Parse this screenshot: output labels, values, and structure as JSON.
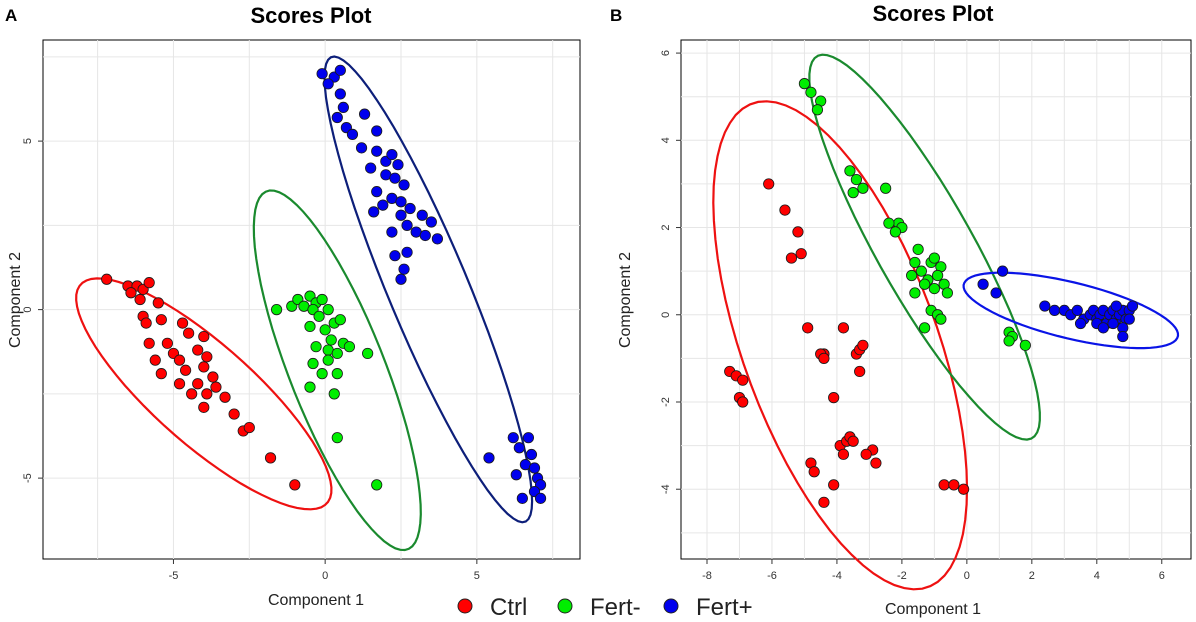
{
  "legend": [
    {
      "label": "Ctrl",
      "color": "#ff0000"
    },
    {
      "label": "Fert-",
      "color": "#00ee00"
    },
    {
      "label": "Fert+",
      "color": "#0000ee"
    }
  ],
  "chart_data": [
    {
      "panel": "A",
      "type": "scatter",
      "title": "Scores Plot",
      "xlabel": "Component 1",
      "ylabel": "Component 2",
      "xlim": [
        -9.3,
        8.4
      ],
      "ylim": [
        -7.4,
        8.0
      ],
      "xticks": [
        -5,
        0,
        5
      ],
      "yticks": [
        -5,
        0,
        5
      ],
      "xtick_labels": [
        "-5",
        "0",
        "5"
      ],
      "ytick_labels": [
        "-5",
        "0",
        "5"
      ],
      "grid": true,
      "series": [
        {
          "name": "Ctrl",
          "color": "#ff0000",
          "ellipse_color": "#ee1111",
          "ellipse": {
            "center": [
              -4.0,
              -2.5
            ],
            "semi_major": 5.2,
            "semi_minor": 1.55,
            "angle_deg": -38
          },
          "points": [
            [
              -7.2,
              0.9
            ],
            [
              -6.5,
              0.7
            ],
            [
              -6.2,
              0.7
            ],
            [
              -6.0,
              0.6
            ],
            [
              -5.8,
              0.8
            ],
            [
              -6.4,
              0.5
            ],
            [
              -6.1,
              0.3
            ],
            [
              -5.5,
              0.2
            ],
            [
              -6.0,
              -0.2
            ],
            [
              -5.9,
              -0.4
            ],
            [
              -5.4,
              -0.3
            ],
            [
              -4.7,
              -0.4
            ],
            [
              -5.8,
              -1.0
            ],
            [
              -5.2,
              -1.0
            ],
            [
              -4.5,
              -0.7
            ],
            [
              -4.0,
              -0.8
            ],
            [
              -5.0,
              -1.3
            ],
            [
              -4.2,
              -1.2
            ],
            [
              -5.6,
              -1.5
            ],
            [
              -4.8,
              -1.5
            ],
            [
              -3.9,
              -1.4
            ],
            [
              -5.4,
              -1.9
            ],
            [
              -4.6,
              -1.8
            ],
            [
              -4.0,
              -1.7
            ],
            [
              -3.7,
              -2.0
            ],
            [
              -4.8,
              -2.2
            ],
            [
              -4.2,
              -2.2
            ],
            [
              -3.6,
              -2.3
            ],
            [
              -4.4,
              -2.5
            ],
            [
              -3.9,
              -2.5
            ],
            [
              -3.3,
              -2.6
            ],
            [
              -4.0,
              -2.9
            ],
            [
              -3.0,
              -3.1
            ],
            [
              -2.7,
              -3.6
            ],
            [
              -2.5,
              -3.5
            ],
            [
              -1.8,
              -4.4
            ],
            [
              -1.0,
              -5.2
            ]
          ]
        },
        {
          "name": "Fert-",
          "color": "#00ee00",
          "ellipse_color": "#1a8a2e",
          "ellipse": {
            "center": [
              0.4,
              -1.8
            ],
            "semi_major": 5.8,
            "semi_minor": 1.55,
            "angle_deg": -66
          },
          "points": [
            [
              -1.6,
              0.0
            ],
            [
              -1.1,
              0.1
            ],
            [
              -0.9,
              0.3
            ],
            [
              -0.5,
              0.4
            ],
            [
              -0.3,
              0.2
            ],
            [
              -0.7,
              0.1
            ],
            [
              -0.4,
              0.0
            ],
            [
              -0.1,
              0.3
            ],
            [
              0.1,
              0.0
            ],
            [
              -0.2,
              -0.2
            ],
            [
              0.3,
              -0.4
            ],
            [
              0.5,
              -0.3
            ],
            [
              -0.5,
              -0.5
            ],
            [
              0.0,
              -0.6
            ],
            [
              0.2,
              -0.9
            ],
            [
              0.6,
              -1.0
            ],
            [
              -0.3,
              -1.1
            ],
            [
              0.1,
              -1.2
            ],
            [
              0.4,
              -1.3
            ],
            [
              0.8,
              -1.1
            ],
            [
              -0.4,
              -1.6
            ],
            [
              0.1,
              -1.5
            ],
            [
              -0.1,
              -1.9
            ],
            [
              0.4,
              -1.9
            ],
            [
              1.4,
              -1.3
            ],
            [
              -0.5,
              -2.3
            ],
            [
              0.3,
              -2.5
            ],
            [
              0.4,
              -3.8
            ],
            [
              1.7,
              -5.2
            ]
          ]
        },
        {
          "name": "Fert+",
          "color": "#0000ee",
          "ellipse_color": "#0d1f7a",
          "ellipse": {
            "center": [
              3.4,
              0.6
            ],
            "semi_major": 7.6,
            "semi_minor": 1.3,
            "angle_deg": -65
          },
          "points": [
            [
              -0.1,
              7.0
            ],
            [
              0.3,
              6.9
            ],
            [
              0.5,
              7.1
            ],
            [
              0.1,
              6.7
            ],
            [
              0.5,
              6.4
            ],
            [
              0.6,
              6.0
            ],
            [
              0.4,
              5.7
            ],
            [
              1.3,
              5.8
            ],
            [
              0.7,
              5.4
            ],
            [
              0.9,
              5.2
            ],
            [
              1.7,
              5.3
            ],
            [
              1.2,
              4.8
            ],
            [
              1.7,
              4.7
            ],
            [
              2.0,
              4.4
            ],
            [
              2.2,
              4.6
            ],
            [
              2.4,
              4.3
            ],
            [
              1.5,
              4.2
            ],
            [
              2.0,
              4.0
            ],
            [
              2.3,
              3.9
            ],
            [
              2.6,
              3.7
            ],
            [
              1.7,
              3.5
            ],
            [
              2.2,
              3.3
            ],
            [
              2.5,
              3.2
            ],
            [
              2.8,
              3.0
            ],
            [
              1.9,
              3.1
            ],
            [
              1.6,
              2.9
            ],
            [
              2.5,
              2.8
            ],
            [
              3.2,
              2.8
            ],
            [
              3.5,
              2.6
            ],
            [
              2.7,
              2.5
            ],
            [
              2.2,
              2.3
            ],
            [
              3.0,
              2.3
            ],
            [
              3.3,
              2.2
            ],
            [
              3.7,
              2.1
            ],
            [
              2.3,
              1.6
            ],
            [
              2.7,
              1.7
            ],
            [
              2.6,
              1.2
            ],
            [
              2.5,
              0.9
            ],
            [
              6.2,
              -3.8
            ],
            [
              6.7,
              -3.8
            ],
            [
              6.4,
              -4.1
            ],
            [
              6.8,
              -4.3
            ],
            [
              5.4,
              -4.4
            ],
            [
              6.6,
              -4.6
            ],
            [
              6.9,
              -4.7
            ],
            [
              6.3,
              -4.9
            ],
            [
              7.0,
              -5.0
            ],
            [
              7.1,
              -5.2
            ],
            [
              6.9,
              -5.4
            ],
            [
              6.5,
              -5.6
            ],
            [
              7.1,
              -5.6
            ]
          ]
        }
      ]
    },
    {
      "panel": "B",
      "type": "scatter",
      "title": "Scores Plot",
      "xlabel": "Component 1",
      "ylabel": "Component 2",
      "xlim": [
        -8.8,
        6.9
      ],
      "ylim": [
        -5.6,
        6.3
      ],
      "xticks": [
        -8,
        -6,
        -4,
        -2,
        0,
        2,
        4,
        6
      ],
      "yticks": [
        -4,
        -2,
        0,
        2,
        4,
        6
      ],
      "xtick_labels": [
        "-8",
        "-6",
        "-4",
        "-2",
        "0",
        "2",
        "4",
        "6"
      ],
      "ytick_labels": [
        "-4",
        "-2",
        "0",
        "2",
        "4",
        "6"
      ],
      "grid": true,
      "series": [
        {
          "name": "Ctrl",
          "color": "#ff0000",
          "ellipse_color": "#ee1111",
          "ellipse": {
            "center": [
              -3.9,
              -0.7
            ],
            "semi_major": 6.2,
            "semi_minor": 2.85,
            "angle_deg": -61
          },
          "points": [
            [
              -6.1,
              3.0
            ],
            [
              -5.6,
              2.4
            ],
            [
              -5.2,
              1.9
            ],
            [
              -5.4,
              1.3
            ],
            [
              -5.1,
              1.4
            ],
            [
              -7.3,
              -1.3
            ],
            [
              -7.1,
              -1.4
            ],
            [
              -6.9,
              -1.5
            ],
            [
              -7.0,
              -1.9
            ],
            [
              -6.9,
              -2.0
            ],
            [
              -4.9,
              -0.3
            ],
            [
              -4.4,
              -0.9
            ],
            [
              -4.5,
              -0.9
            ],
            [
              -4.4,
              -1.0
            ],
            [
              -3.8,
              -0.3
            ],
            [
              -3.4,
              -0.9
            ],
            [
              -3.3,
              -0.8
            ],
            [
              -3.2,
              -0.7
            ],
            [
              -3.3,
              -1.3
            ],
            [
              -4.1,
              -1.9
            ],
            [
              -3.9,
              -3.0
            ],
            [
              -3.7,
              -2.9
            ],
            [
              -3.6,
              -2.8
            ],
            [
              -3.5,
              -2.9
            ],
            [
              -3.8,
              -3.2
            ],
            [
              -2.9,
              -3.1
            ],
            [
              -3.1,
              -3.2
            ],
            [
              -4.8,
              -3.4
            ],
            [
              -4.7,
              -3.6
            ],
            [
              -2.8,
              -3.4
            ],
            [
              -4.1,
              -3.9
            ],
            [
              -4.4,
              -4.3
            ],
            [
              -0.7,
              -3.9
            ],
            [
              -0.4,
              -3.9
            ],
            [
              -0.1,
              -4.0
            ]
          ]
        },
        {
          "name": "Fert-",
          "color": "#00ee00",
          "ellipse_color": "#1a8a2e",
          "ellipse": {
            "center": [
              -1.3,
              1.55
            ],
            "semi_major": 5.5,
            "semi_minor": 1.35,
            "angle_deg": -52
          },
          "points": [
            [
              -5.0,
              5.3
            ],
            [
              -4.8,
              5.1
            ],
            [
              -4.5,
              4.9
            ],
            [
              -4.6,
              4.7
            ],
            [
              -3.6,
              3.3
            ],
            [
              -3.4,
              3.1
            ],
            [
              -3.2,
              2.9
            ],
            [
              -3.5,
              2.8
            ],
            [
              -2.5,
              2.9
            ],
            [
              -2.1,
              2.1
            ],
            [
              -2.4,
              2.1
            ],
            [
              -2.0,
              2.0
            ],
            [
              -2.2,
              1.9
            ],
            [
              -1.5,
              1.5
            ],
            [
              -1.6,
              1.2
            ],
            [
              -1.1,
              1.2
            ],
            [
              -1.0,
              1.3
            ],
            [
              -0.8,
              1.1
            ],
            [
              -1.7,
              0.9
            ],
            [
              -1.4,
              1.0
            ],
            [
              -1.2,
              0.8
            ],
            [
              -0.9,
              0.9
            ],
            [
              -1.3,
              0.7
            ],
            [
              -1.0,
              0.6
            ],
            [
              -0.7,
              0.7
            ],
            [
              -1.6,
              0.5
            ],
            [
              -0.6,
              0.5
            ],
            [
              -1.1,
              0.1
            ],
            [
              -0.9,
              0.0
            ],
            [
              -0.8,
              -0.1
            ],
            [
              -1.3,
              -0.3
            ],
            [
              1.3,
              -0.4
            ],
            [
              1.4,
              -0.5
            ],
            [
              1.3,
              -0.6
            ],
            [
              1.8,
              -0.7
            ]
          ]
        },
        {
          "name": "Fert+",
          "color": "#0000ee",
          "ellipse_color": "#0a14e6",
          "ellipse": {
            "center": [
              3.2,
              0.1
            ],
            "semi_major": 3.35,
            "semi_minor": 0.65,
            "angle_deg": -10
          },
          "points": [
            [
              0.5,
              0.7
            ],
            [
              0.9,
              0.5
            ],
            [
              1.1,
              1.0
            ],
            [
              2.4,
              0.2
            ],
            [
              2.7,
              0.1
            ],
            [
              3.0,
              0.1
            ],
            [
              3.2,
              0.0
            ],
            [
              3.4,
              0.1
            ],
            [
              3.6,
              -0.1
            ],
            [
              3.8,
              0.0
            ],
            [
              3.9,
              0.1
            ],
            [
              4.0,
              -0.1
            ],
            [
              4.1,
              0.0
            ],
            [
              4.2,
              0.1
            ],
            [
              4.3,
              -0.2
            ],
            [
              4.4,
              0.0
            ],
            [
              4.5,
              0.1
            ],
            [
              4.6,
              -0.1
            ],
            [
              4.7,
              0.0
            ],
            [
              4.8,
              0.1
            ],
            [
              4.9,
              -0.1
            ],
            [
              5.0,
              0.1
            ],
            [
              5.1,
              0.2
            ],
            [
              3.5,
              -0.2
            ],
            [
              4.0,
              -0.2
            ],
            [
              4.5,
              -0.2
            ],
            [
              4.8,
              -0.3
            ],
            [
              4.2,
              -0.3
            ],
            [
              4.6,
              0.2
            ],
            [
              5.0,
              -0.1
            ],
            [
              4.8,
              -0.5
            ]
          ]
        }
      ]
    }
  ]
}
